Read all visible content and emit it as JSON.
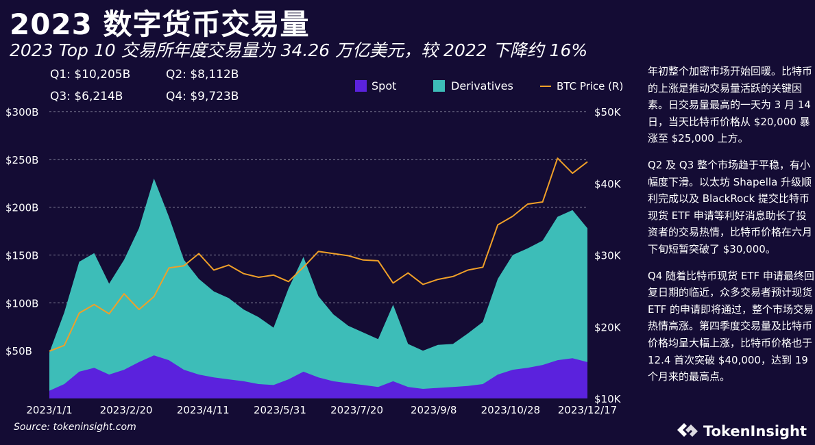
{
  "title": "2023 数字货币交易量",
  "subtitle": "2023 Top 10 交易所年度交易量为 34.26 万亿美元，较 2022 下降约 16%",
  "quarters": [
    {
      "label": "Q1: $10,205B"
    },
    {
      "label": "Q2: $8,112B"
    },
    {
      "label": "Q3: $6,214B"
    },
    {
      "label": "Q4: $9,723B"
    }
  ],
  "source": "Source: tokeninsight.com",
  "brand": {
    "name": "TokenInsight",
    "icon": "tokeninsight-logo-icon"
  },
  "commentary": [
    "年初整个加密市场开始回暖。比特币的上涨是推动交易量活跃的关键因素。日交易量最高的一天为 3 月 14 日，当天比特币价格从 $20,000 暴涨至 $25,000 上方。",
    "Q2 及 Q3 整个市场趋于平稳，有小幅度下滑。以太坊 Shapella 升级顺利完成以及 BlackRock 提交比特币现货 ETF 申请等利好消息助长了投资者的交易热情，比特币价格在六月下旬短暂突破了 $30,000。",
    "Q4 随着比特币现货 ETF 申请最终回复日期的临近，众多交易者预计现货 ETF 的申请即将通过，整个市场交易热情高涨。第四季度交易量及比特币价格均呈大幅上涨，比特币价格也于 12.4 首次突破 $40,000，达到 19 个月来的最高点。"
  ],
  "colors": {
    "background": "#140c34",
    "spot": "#5b22dd",
    "derivatives": "#3dbdb8",
    "btc": "#f0a028",
    "grid": "#8a8aa0"
  },
  "chart_data": {
    "type": "area",
    "x_tick_labels": [
      "2023/1/1",
      "2023/2/20",
      "2023/4/11",
      "2023/5/31",
      "2023/7/20",
      "2023/9/8",
      "2023/10/28",
      "2023/12/17"
    ],
    "x": [
      "2023-01-01",
      "2023-01-11",
      "2023-01-21",
      "2023-01-31",
      "2023-02-10",
      "2023-02-20",
      "2023-03-02",
      "2023-03-12",
      "2023-03-22",
      "2023-04-01",
      "2023-04-11",
      "2023-04-21",
      "2023-05-01",
      "2023-05-11",
      "2023-05-21",
      "2023-05-31",
      "2023-06-10",
      "2023-06-20",
      "2023-06-30",
      "2023-07-10",
      "2023-07-20",
      "2023-07-30",
      "2023-08-09",
      "2023-08-19",
      "2023-08-29",
      "2023-09-08",
      "2023-09-18",
      "2023-09-28",
      "2023-10-08",
      "2023-10-18",
      "2023-10-28",
      "2023-11-07",
      "2023-11-17",
      "2023-11-27",
      "2023-12-07",
      "2023-12-17",
      "2023-12-27"
    ],
    "y_left": {
      "ticks": [
        "$50B",
        "$100B",
        "$150B",
        "$200B",
        "$250B",
        "$300B"
      ],
      "ylim": [
        0,
        300
      ]
    },
    "y_right": {
      "ticks": [
        "$10K",
        "$20K",
        "$30K",
        "$40K",
        "$50K"
      ],
      "ylim": [
        10,
        50
      ]
    },
    "grid": true,
    "legend_position": "top-right",
    "series": [
      {
        "name": "Spot",
        "axis": "left",
        "kind": "area",
        "values": [
          8,
          15,
          28,
          32,
          25,
          30,
          38,
          45,
          40,
          30,
          25,
          22,
          20,
          18,
          15,
          14,
          20,
          28,
          22,
          18,
          16,
          14,
          12,
          18,
          12,
          10,
          11,
          12,
          13,
          15,
          25,
          30,
          32,
          35,
          40,
          42,
          38
        ]
      },
      {
        "name": "Derivatives",
        "axis": "left",
        "kind": "stacked-area",
        "values": [
          40,
          75,
          115,
          120,
          95,
          115,
          140,
          185,
          150,
          115,
          100,
          90,
          85,
          75,
          70,
          60,
          95,
          120,
          85,
          70,
          60,
          55,
          50,
          80,
          45,
          40,
          45,
          45,
          55,
          65,
          100,
          120,
          125,
          130,
          150,
          155,
          140
        ]
      },
      {
        "name": "BTC Price (R)",
        "axis": "right",
        "kind": "line",
        "values": [
          16.6,
          17.4,
          21.9,
          23.1,
          21.8,
          24.6,
          22.4,
          24.2,
          28.2,
          28.5,
          30.2,
          27.9,
          28.6,
          27.4,
          26.9,
          27.2,
          26.3,
          28.3,
          30.5,
          30.2,
          29.9,
          29.3,
          29.2,
          26.1,
          27.5,
          25.9,
          26.6,
          27.0,
          27.9,
          28.3,
          34.2,
          35.4,
          37.1,
          37.4,
          43.5,
          41.4,
          43.0
        ]
      }
    ]
  }
}
